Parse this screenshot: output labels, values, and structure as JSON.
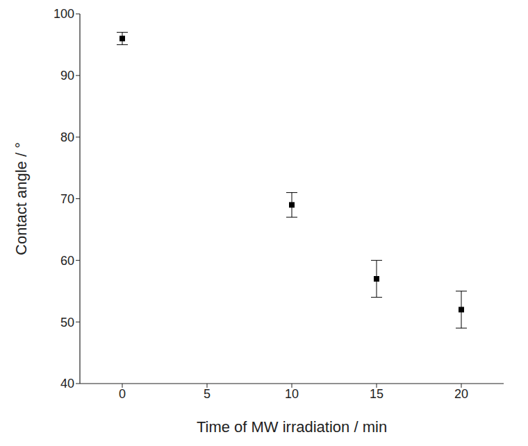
{
  "chart_data": {
    "type": "scatter",
    "x_label": "Time of MW irradiation / min",
    "y_label": "Contact angle / °",
    "x": [
      0,
      10,
      15,
      20
    ],
    "values": [
      96,
      69,
      57,
      52
    ],
    "errors": [
      1,
      2,
      3,
      3
    ],
    "color": "#000000",
    "marker": "square",
    "xlim": [
      -2.5,
      22.5
    ],
    "xticks": [
      0,
      5,
      10,
      15,
      20
    ],
    "ylim": [
      40,
      100
    ],
    "yticks": [
      40,
      50,
      60,
      70,
      80,
      90,
      100
    ],
    "grid": false
  }
}
